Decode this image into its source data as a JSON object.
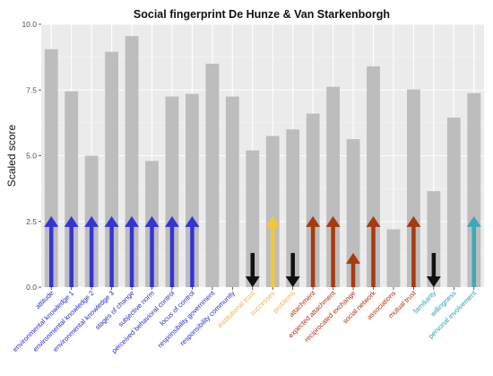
{
  "chart_data": {
    "type": "bar",
    "title": "Social fingerprint De Hunze & Van Starkenborgh",
    "xlabel": "",
    "ylabel": "Scaled score",
    "ylim": [
      0,
      10
    ],
    "yticks": [
      "0.0",
      "2.5",
      "5.0",
      "7.5",
      "10.0"
    ],
    "grid": true,
    "bar_color": "#bdbdbd",
    "panel_background": "#ebebeb",
    "categories": [
      "attitude",
      "environmental knowledge 1",
      "environmental knowledge 2",
      "environmental knowledge 3",
      "stages of change",
      "subjective norm",
      "perceived behavioral control",
      "locus of control",
      "responsibility government",
      "responsibility community",
      "institutional trust",
      "successes",
      "problems",
      "attachment",
      "expected attachment",
      "reciprocated exchange",
      "social network",
      "associations",
      "mutual trust",
      "familiarity",
      "willingness",
      "personal involvement"
    ],
    "label_colors": [
      "#2a2ad0",
      "#2a2ad0",
      "#2a2ad0",
      "#2a2ad0",
      "#2a2ad0",
      "#2a2ad0",
      "#2a2ad0",
      "#2a2ad0",
      "#2a2ad0",
      "#2a2ad0",
      "#e8b84a",
      "#e8b84a",
      "#e8b84a",
      "#b03010",
      "#b03010",
      "#b03010",
      "#b03010",
      "#b03010",
      "#b03010",
      "#2aa0b0",
      "#2aa0b0",
      "#2aa0b0"
    ],
    "values": [
      9.05,
      7.45,
      5.0,
      8.95,
      9.55,
      4.8,
      7.25,
      7.35,
      8.5,
      7.25,
      5.2,
      5.75,
      6.0,
      6.6,
      7.62,
      5.63,
      8.4,
      2.2,
      7.52,
      3.65,
      6.45,
      7.38
    ],
    "markers": [
      {
        "index": 0,
        "kind": "up",
        "color": "#3535d5",
        "from": 0,
        "to": 2.7
      },
      {
        "index": 1,
        "kind": "up",
        "color": "#3535d5",
        "from": 0,
        "to": 2.7
      },
      {
        "index": 2,
        "kind": "up",
        "color": "#3535d5",
        "from": 0,
        "to": 2.7
      },
      {
        "index": 3,
        "kind": "up",
        "color": "#3535d5",
        "from": 0,
        "to": 2.7
      },
      {
        "index": 4,
        "kind": "up",
        "color": "#3535d5",
        "from": 0,
        "to": 2.7
      },
      {
        "index": 5,
        "kind": "up",
        "color": "#3535d5",
        "from": 0,
        "to": 2.7
      },
      {
        "index": 6,
        "kind": "up",
        "color": "#3535d5",
        "from": 0,
        "to": 2.7
      },
      {
        "index": 7,
        "kind": "up",
        "color": "#3535d5",
        "from": 0,
        "to": 2.7
      },
      {
        "index": 10,
        "kind": "down",
        "color": "#111111",
        "from": 1.3,
        "to": 0
      },
      {
        "index": 11,
        "kind": "up",
        "color": "#f2c933",
        "from": 0,
        "to": 2.7
      },
      {
        "index": 12,
        "kind": "down",
        "color": "#111111",
        "from": 1.3,
        "to": 0
      },
      {
        "index": 13,
        "kind": "up",
        "color": "#a83a10",
        "from": 0,
        "to": 2.7
      },
      {
        "index": 14,
        "kind": "up",
        "color": "#a83a10",
        "from": 0,
        "to": 2.7
      },
      {
        "index": 15,
        "kind": "up",
        "color": "#a83a10",
        "from": 0,
        "to": 1.3
      },
      {
        "index": 16,
        "kind": "up",
        "color": "#a83a10",
        "from": 0,
        "to": 2.7
      },
      {
        "index": 18,
        "kind": "up",
        "color": "#a83a10",
        "from": 0,
        "to": 2.7
      },
      {
        "index": 19,
        "kind": "down",
        "color": "#111111",
        "from": 1.3,
        "to": 0
      },
      {
        "index": 21,
        "kind": "up",
        "color": "#3aaab8",
        "from": 0,
        "to": 2.7
      }
    ]
  }
}
